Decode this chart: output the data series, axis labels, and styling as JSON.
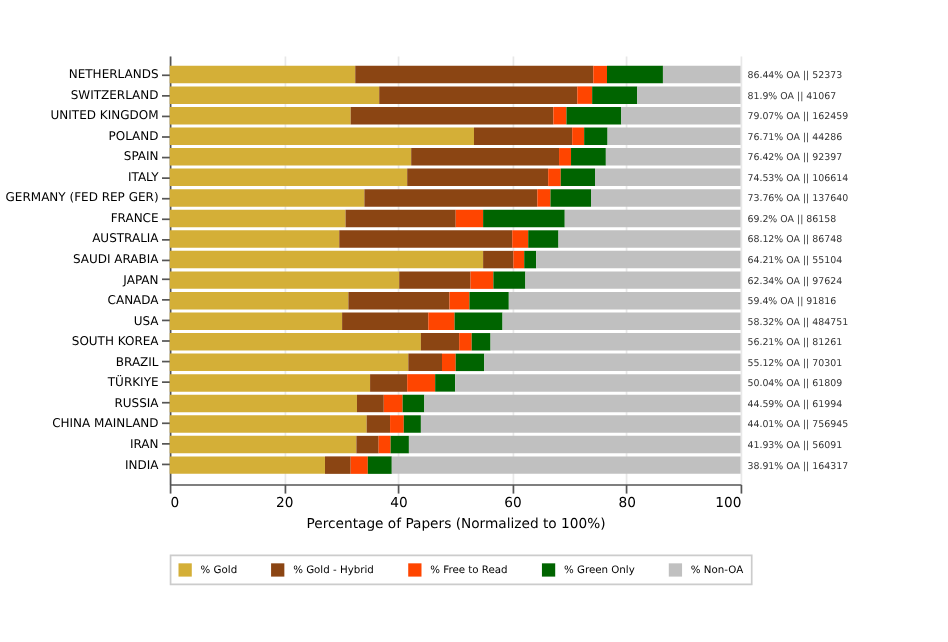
{
  "chart_data": {
    "type": "bar",
    "orientation": "horizontal",
    "stacked": true,
    "categories": [
      "NETHERLANDS",
      "SWITZERLAND",
      "UNITED KINGDOM",
      "POLAND",
      "SPAIN",
      "ITALY",
      "GERMANY (FED REP GER)",
      "FRANCE",
      "AUSTRALIA",
      "SAUDI ARABIA",
      "JAPAN",
      "CANADA",
      "USA",
      "SOUTH KOREA",
      "BRAZIL",
      "TÜRKIYE",
      "RUSSIA",
      "CHINA MAINLAND",
      "IRAN",
      "INDIA"
    ],
    "series": [
      {
        "name": "% Gold",
        "color": "#d4af37",
        "values": [
          32.5,
          36.7,
          31.7,
          53.3,
          42.3,
          41.6,
          34.1,
          30.8,
          29.7,
          54.9,
          40.2,
          31.3,
          30.2,
          44.0,
          41.8,
          35.1,
          32.8,
          34.5,
          32.7,
          27.2
        ]
      },
      {
        "name": "% Gold - Hybrid",
        "color": "#8b4513",
        "values": [
          41.7,
          34.7,
          35.5,
          17.2,
          25.9,
          24.7,
          30.3,
          19.3,
          30.3,
          5.3,
          12.5,
          17.7,
          15.1,
          6.7,
          5.9,
          6.5,
          4.7,
          4.1,
          3.9,
          4.5
        ]
      },
      {
        "name": "% Free to Read",
        "color": "#ff4500",
        "values": [
          2.4,
          2.6,
          2.3,
          2.1,
          2.1,
          2.2,
          2.3,
          4.8,
          2.8,
          1.9,
          4.0,
          3.5,
          4.6,
          2.2,
          2.4,
          4.9,
          3.3,
          2.4,
          2.1,
          3.0
        ]
      },
      {
        "name": "% Green Only",
        "color": "#006400",
        "values": [
          9.8,
          7.9,
          9.6,
          4.1,
          6.1,
          6.0,
          7.1,
          14.3,
          5.3,
          2.1,
          5.6,
          6.9,
          8.4,
          3.3,
          5.0,
          3.5,
          3.8,
          3.0,
          3.2,
          4.2
        ]
      },
      {
        "name": "% Non-OA",
        "color": "#c0c0c0",
        "values": [
          13.6,
          18.1,
          20.9,
          23.3,
          23.6,
          25.5,
          26.2,
          30.8,
          31.9,
          35.8,
          37.7,
          40.6,
          41.7,
          43.8,
          44.9,
          50.0,
          55.4,
          56.0,
          58.1,
          61.1
        ]
      }
    ],
    "xlabel": "Percentage of Papers (Normalized to 100%)",
    "xlim": [
      0,
      100
    ],
    "xticks": [
      0,
      20,
      40,
      60,
      80,
      100
    ],
    "grid": "x",
    "legend": "bottom",
    "annotations": [
      "86.44% OA || 52373",
      "81.9% OA || 41067",
      "79.07% OA || 162459",
      "76.71% OA || 44286",
      "76.42% OA || 92397",
      "74.53% OA || 106614",
      "73.76% OA || 137640",
      "69.2% OA || 86158",
      "68.12% OA || 86748",
      "64.21% OA || 55104",
      "62.34% OA || 97624",
      "59.4% OA || 91816",
      "58.32% OA || 484751",
      "56.21% OA || 81261",
      "55.12% OA || 70301",
      "50.04% OA || 61809",
      "44.59% OA || 61994",
      "44.01% OA || 756945",
      "41.93% OA || 56091",
      "38.91% OA || 164317"
    ]
  }
}
